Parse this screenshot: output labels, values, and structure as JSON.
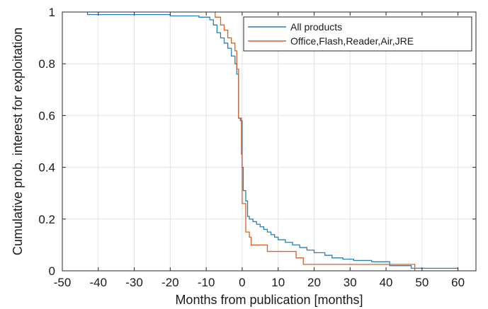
{
  "chart_data": {
    "type": "line",
    "title": "",
    "xlabel": "Months from publication [months]",
    "ylabel": "Cumulative prob. interest for exploitation",
    "xlim": [
      -50,
      65
    ],
    "ylim": [
      0,
      1
    ],
    "xticks": [
      -50,
      -40,
      -30,
      -20,
      -10,
      0,
      10,
      20,
      30,
      40,
      50,
      60
    ],
    "yticks": [
      0,
      0.2,
      0.4,
      0.6,
      0.8,
      1
    ],
    "xtick_labels": [
      "-50",
      "-40",
      "-30",
      "-20",
      "-10",
      "0",
      "10",
      "20",
      "30",
      "40",
      "50",
      "60"
    ],
    "ytick_labels": [
      "0",
      "0.2",
      "0.4",
      "0.6",
      "0.8",
      "1"
    ],
    "grid": true,
    "legend_position": "top-right",
    "series": [
      {
        "name": "All products",
        "color": "#2a7fb5",
        "step": true,
        "points": [
          [
            -43,
            1.0
          ],
          [
            -43,
            0.99
          ],
          [
            -20,
            0.99
          ],
          [
            -20,
            0.985
          ],
          [
            -12,
            0.985
          ],
          [
            -12,
            0.98
          ],
          [
            -9,
            0.98
          ],
          [
            -9,
            0.97
          ],
          [
            -8,
            0.97
          ],
          [
            -8,
            0.95
          ],
          [
            -7,
            0.95
          ],
          [
            -7,
            0.92
          ],
          [
            -6,
            0.92
          ],
          [
            -6,
            0.9
          ],
          [
            -5,
            0.9
          ],
          [
            -5,
            0.88
          ],
          [
            -4,
            0.88
          ],
          [
            -4,
            0.86
          ],
          [
            -3,
            0.86
          ],
          [
            -3,
            0.83
          ],
          [
            -2,
            0.83
          ],
          [
            -2,
            0.8
          ],
          [
            -1.5,
            0.8
          ],
          [
            -1.5,
            0.76
          ],
          [
            -1,
            0.76
          ],
          [
            -1,
            0.59
          ],
          [
            -0.5,
            0.59
          ],
          [
            -0.5,
            0.58
          ],
          [
            0,
            0.58
          ],
          [
            0,
            0.4
          ],
          [
            0.3,
            0.4
          ],
          [
            0.3,
            0.31
          ],
          [
            1,
            0.31
          ],
          [
            1,
            0.27
          ],
          [
            1.5,
            0.27
          ],
          [
            1.5,
            0.21
          ],
          [
            2,
            0.21
          ],
          [
            2,
            0.2
          ],
          [
            3,
            0.2
          ],
          [
            3,
            0.19
          ],
          [
            4,
            0.19
          ],
          [
            4,
            0.18
          ],
          [
            5,
            0.18
          ],
          [
            5,
            0.17
          ],
          [
            6,
            0.17
          ],
          [
            6,
            0.16
          ],
          [
            7,
            0.16
          ],
          [
            7,
            0.15
          ],
          [
            8,
            0.15
          ],
          [
            8,
            0.14
          ],
          [
            9,
            0.14
          ],
          [
            9,
            0.13
          ],
          [
            10,
            0.13
          ],
          [
            10,
            0.12
          ],
          [
            12,
            0.12
          ],
          [
            12,
            0.11
          ],
          [
            14,
            0.11
          ],
          [
            14,
            0.1
          ],
          [
            16,
            0.1
          ],
          [
            16,
            0.09
          ],
          [
            18,
            0.09
          ],
          [
            18,
            0.08
          ],
          [
            20,
            0.08
          ],
          [
            20,
            0.07
          ],
          [
            23,
            0.07
          ],
          [
            23,
            0.06
          ],
          [
            25,
            0.06
          ],
          [
            25,
            0.05
          ],
          [
            28,
            0.05
          ],
          [
            28,
            0.045
          ],
          [
            31,
            0.045
          ],
          [
            31,
            0.04
          ],
          [
            36,
            0.04
          ],
          [
            36,
            0.035
          ],
          [
            41,
            0.035
          ],
          [
            41,
            0.02
          ],
          [
            47,
            0.02
          ],
          [
            47,
            0.01
          ],
          [
            60,
            0.01
          ],
          [
            60,
            0.008
          ]
        ]
      },
      {
        "name": "Office,Flash,Reader,Air,JRE",
        "color": "#d4622a",
        "step": true,
        "points": [
          [
            -7.5,
            1.0
          ],
          [
            -7.5,
            0.98
          ],
          [
            -6,
            0.98
          ],
          [
            -6,
            0.95
          ],
          [
            -5,
            0.95
          ],
          [
            -5,
            0.93
          ],
          [
            -4,
            0.93
          ],
          [
            -4,
            0.9
          ],
          [
            -3,
            0.9
          ],
          [
            -3,
            0.88
          ],
          [
            -2,
            0.88
          ],
          [
            -2,
            0.85
          ],
          [
            -1.5,
            0.85
          ],
          [
            -1.5,
            0.78
          ],
          [
            -1,
            0.78
          ],
          [
            -1,
            0.59
          ],
          [
            -0.2,
            0.59
          ],
          [
            -0.2,
            0.45
          ],
          [
            0,
            0.45
          ],
          [
            0,
            0.26
          ],
          [
            1,
            0.26
          ],
          [
            1,
            0.15
          ],
          [
            2,
            0.15
          ],
          [
            2,
            0.13
          ],
          [
            2.5,
            0.13
          ],
          [
            2.5,
            0.1
          ],
          [
            7,
            0.1
          ],
          [
            7,
            0.075
          ],
          [
            15,
            0.075
          ],
          [
            15,
            0.05
          ],
          [
            17,
            0.05
          ],
          [
            17,
            0.025
          ],
          [
            48,
            0.025
          ],
          [
            48,
            0.0
          ]
        ]
      }
    ]
  }
}
